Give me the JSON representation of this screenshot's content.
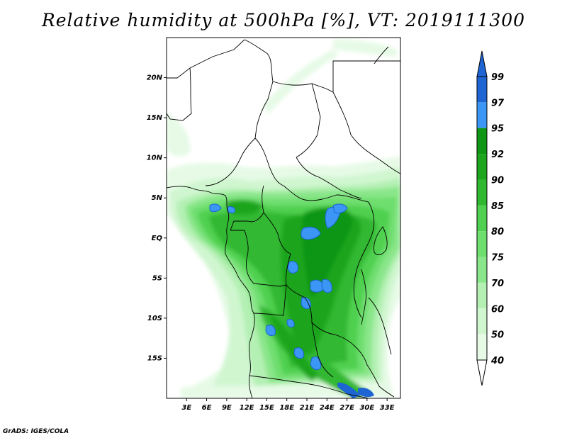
{
  "title": "Relative humidity at 500hPa [%], VT: 2019111300",
  "credit": "GrADS: IGES/COLA",
  "map": {
    "lon_range": [
      0,
      35
    ],
    "lat_range": [
      -20,
      25
    ],
    "lat_ticks": [
      {
        "value": 20,
        "label": "20N"
      },
      {
        "value": 15,
        "label": "15N"
      },
      {
        "value": 10,
        "label": "10N"
      },
      {
        "value": 5,
        "label": "5N"
      },
      {
        "value": 0,
        "label": "EQ"
      },
      {
        "value": -5,
        "label": "5S"
      },
      {
        "value": -10,
        "label": "10S"
      },
      {
        "value": -15,
        "label": "15S"
      }
    ],
    "lon_ticks": [
      {
        "value": 3,
        "label": "3E"
      },
      {
        "value": 6,
        "label": "6E"
      },
      {
        "value": 9,
        "label": "9E"
      },
      {
        "value": 12,
        "label": "12E"
      },
      {
        "value": 15,
        "label": "15E"
      },
      {
        "value": 18,
        "label": "18E"
      },
      {
        "value": 21,
        "label": "21E"
      },
      {
        "value": 24,
        "label": "24E"
      },
      {
        "value": 27,
        "label": "27E"
      },
      {
        "value": 30,
        "label": "30E"
      },
      {
        "value": 33,
        "label": "33E"
      }
    ]
  },
  "colorbar": {
    "levels": [
      {
        "label": "99",
        "color": "#1e64d2"
      },
      {
        "label": "97",
        "color": "#1e78e6"
      },
      {
        "label": "95",
        "color": "#3c96f5"
      },
      {
        "label": "92",
        "color": "#0f9614"
      },
      {
        "label": "90",
        "color": "#1ea51e"
      },
      {
        "label": "85",
        "color": "#30b830"
      },
      {
        "label": "80",
        "color": "#50d050"
      },
      {
        "label": "75",
        "color": "#6ede6e"
      },
      {
        "label": "70",
        "color": "#8ae68a"
      },
      {
        "label": "60",
        "color": "#b4f0b4"
      },
      {
        "label": "50",
        "color": "#d0f6d0"
      },
      {
        "label": "40",
        "color": "#e6fae6"
      }
    ],
    "top_triangle_color": "#1e64d2",
    "bottom_triangle_color": "#ffffff"
  }
}
